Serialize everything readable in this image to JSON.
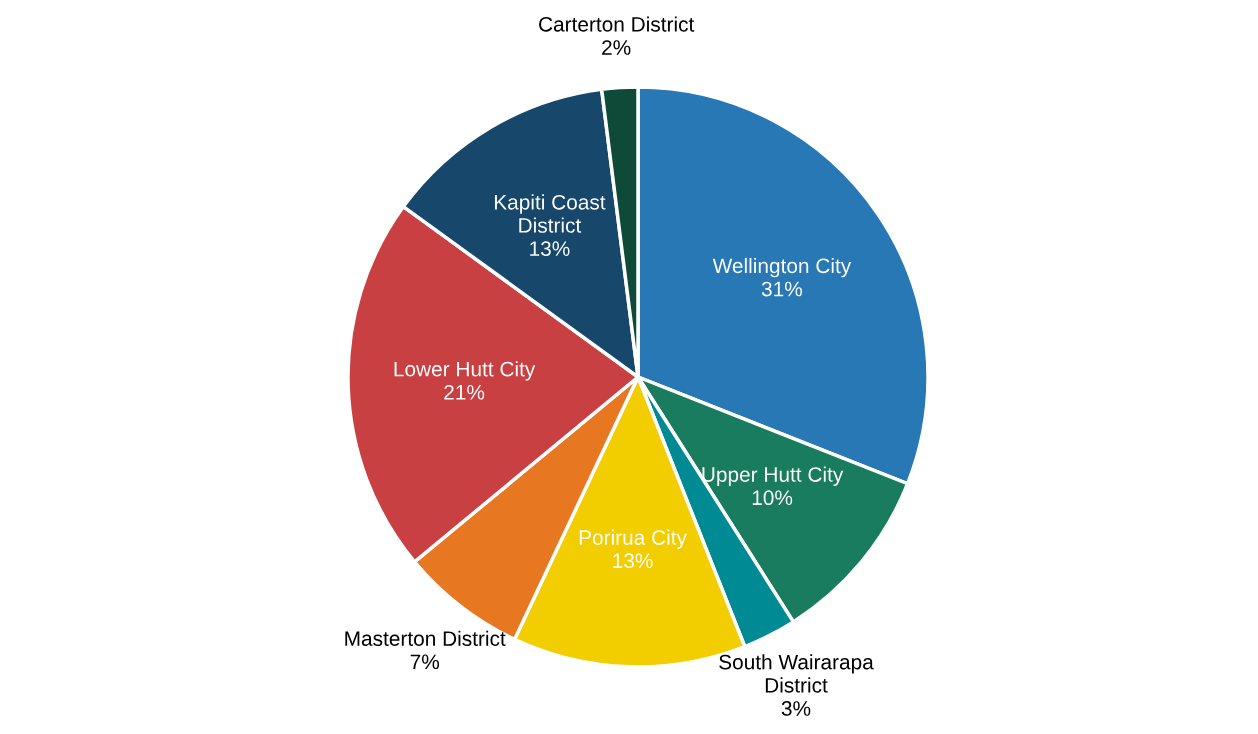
{
  "chart_data": {
    "type": "pie",
    "categories": [
      "Wellington City",
      "Upper Hutt City",
      "South Wairarapa District",
      "Porirua City",
      "Masterton District",
      "Lower Hutt City",
      "Kapiti Coast District",
      "Carterton District"
    ],
    "values": [
      31,
      10,
      3,
      13,
      7,
      21,
      13,
      2
    ],
    "colors": [
      "#2878b5",
      "#1a7c5e",
      "#008b94",
      "#f2cd00",
      "#e87722",
      "#c94042",
      "#17476a",
      "#0f4a38"
    ],
    "value_labels": [
      "31%",
      "10%",
      "3%",
      "13%",
      "7%",
      "21%",
      "13%",
      "2%"
    ],
    "legend": false
  }
}
